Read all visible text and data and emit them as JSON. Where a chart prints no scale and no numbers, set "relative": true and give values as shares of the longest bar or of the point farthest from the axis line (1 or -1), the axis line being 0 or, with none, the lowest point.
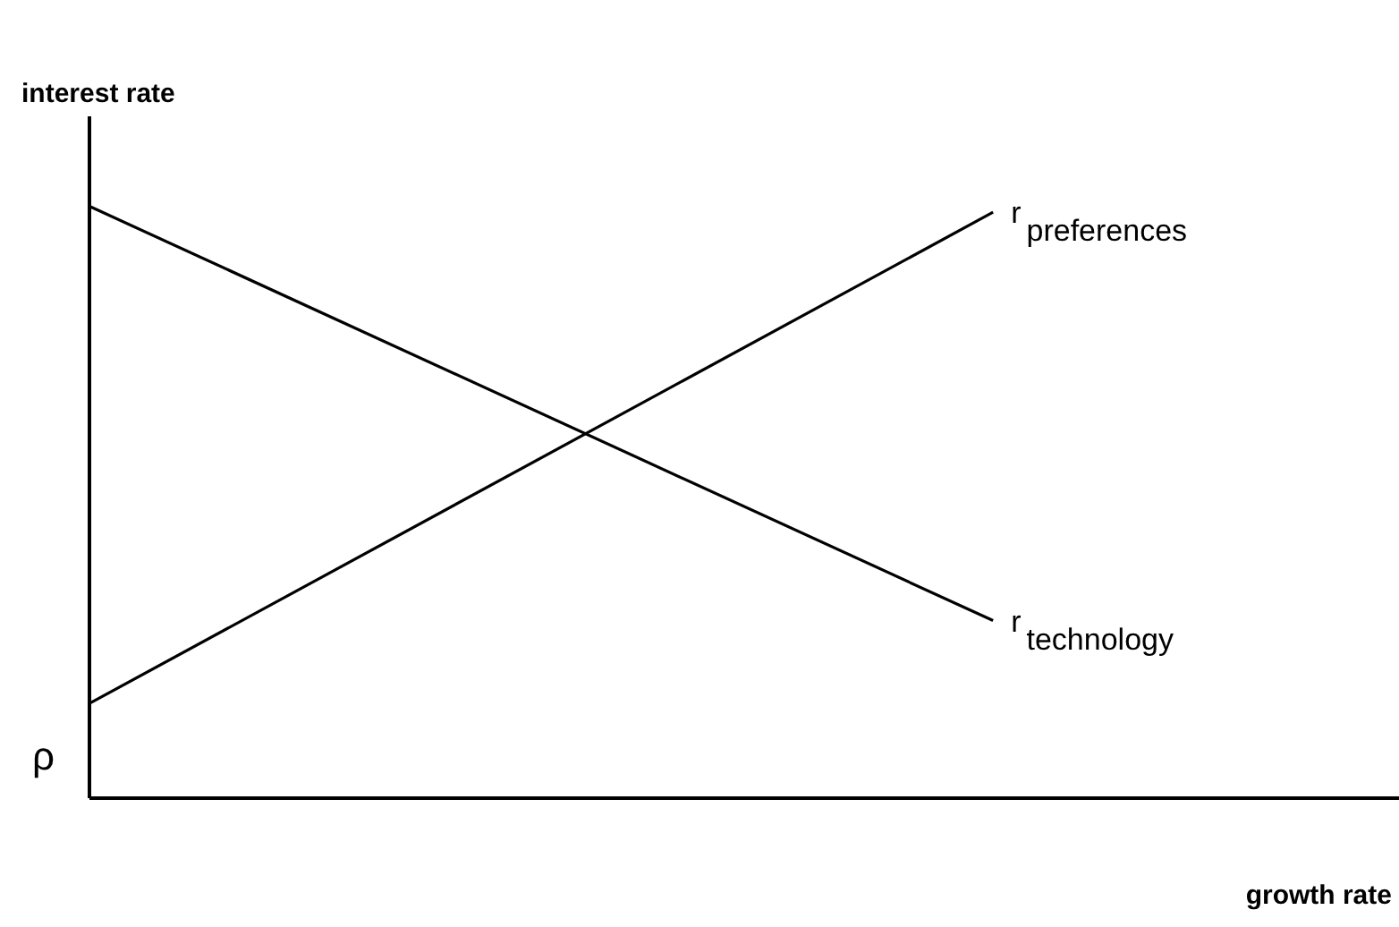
{
  "chart_data": {
    "type": "line",
    "relative": true,
    "xlabel": "growth rate",
    "ylabel": "interest rate",
    "categories": [
      null,
      null
    ],
    "series": [
      {
        "name": "r$_{technology}$",
        "color": "#000000",
        "values": [
          1,
          0.3
        ]
      },
      {
        "name": "r$_{preferences}$",
        "color": "#000000",
        "values": [
          0.16,
          0.99
        ]
      }
    ],
    "annotations": [
      "ρ"
    ],
    "grid": false,
    "legend": false,
    "marker": "none",
    "line_style": "solid"
  }
}
